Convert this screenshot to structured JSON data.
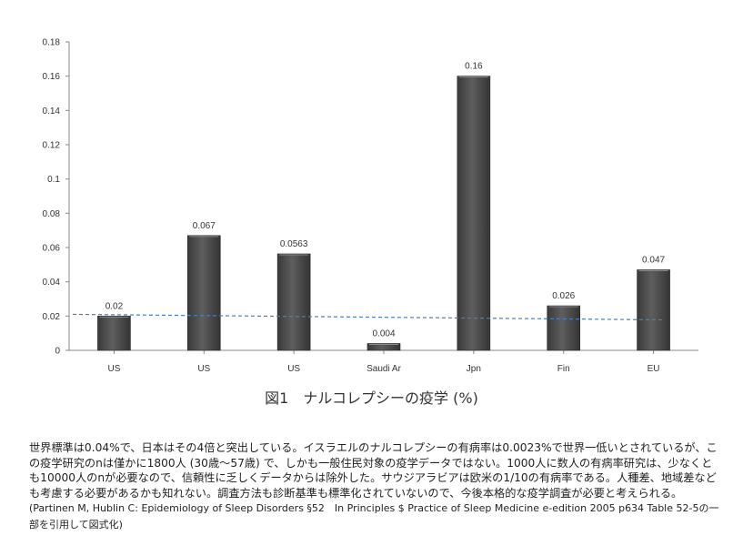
{
  "chart_data": {
    "type": "bar",
    "categories": [
      "US",
      "US",
      "US",
      "Saudi Ar",
      "Jpn",
      "Fin",
      "EU"
    ],
    "values": [
      0.02,
      0.067,
      0.0563,
      0.004,
      0.16,
      0.026,
      0.047
    ],
    "data_labels": [
      "0.02",
      "0.067",
      "0.0563",
      "0.004",
      "0.16",
      "0.026",
      "0.047"
    ],
    "ylim": [
      0,
      0.18
    ],
    "yticks": [
      0,
      0.02,
      0.04,
      0.06,
      0.08,
      0.1,
      0.12,
      0.14,
      0.16,
      0.18
    ],
    "ytick_labels": [
      "0",
      "0.02",
      "0.04",
      "0.06",
      "0.08",
      "0.1",
      "0.12",
      "0.14",
      "0.16",
      "0.18"
    ],
    "trendline": {
      "style": "dashed",
      "color": "#4a7ebb",
      "start": 0.021,
      "end": 0.0178
    },
    "grid": false,
    "bar_color": "#4d4d4d"
  },
  "caption": "図1　ナルコレプシーの疫学 (%)",
  "body": {
    "main": "世界標準は0.04%で、日本はその4倍と突出している。イスラエルのナルコレプシーの有病率は0.0023%で世界一低いとされているが、この疫学研究のnは僅かに1800人 (30歳～57歳) で、しかも一般住民対象の疫学データではない。1000人に数人の有病率研究は、少なくとも10000人のnが必要なので、信頼性に乏しくデータからは除外した。サウジアラビアは欧米の1/10の有病率である。人種差、地域差なども考慮する必要があるかも知れない。調査方法も診断基準も標準化されていないので、今後本格的な疫学調査が必要と考えられる。",
    "citation": "(Partinen M, Hublin C: Epidemiology of Sleep Disorders §52　In Principles $ Practice of Sleep Medicine e-edition 2005 p634 Table 52-5の一部を引用して図式化)"
  }
}
